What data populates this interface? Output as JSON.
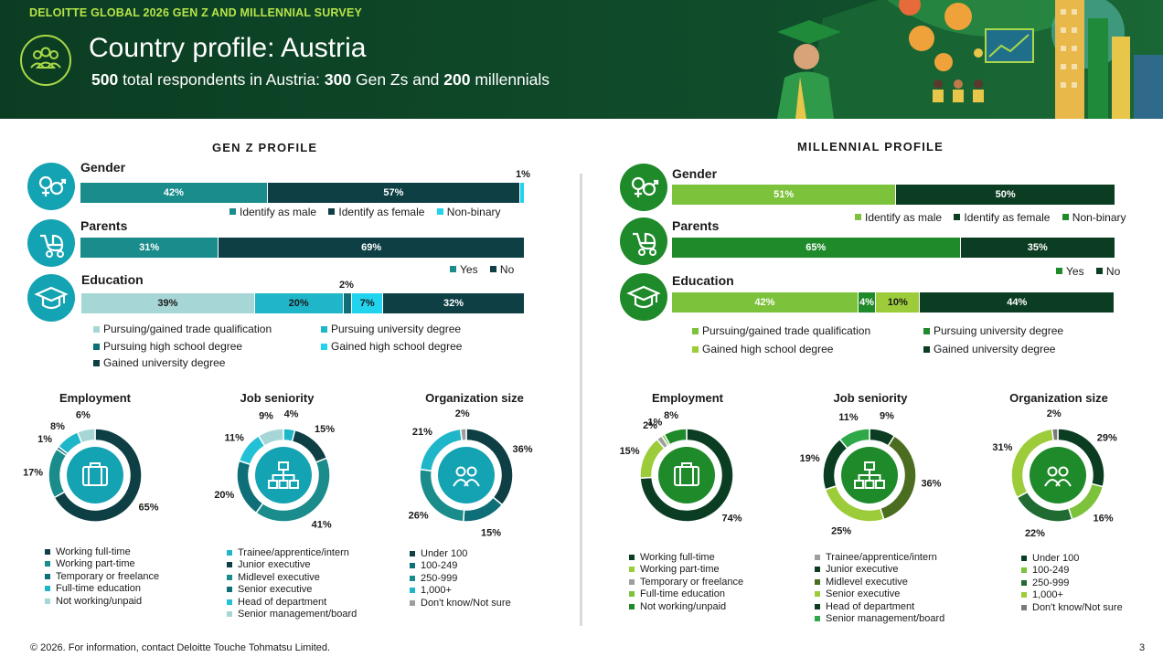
{
  "header": {
    "survey_label": "DELOITTE GLOBAL 2026 GEN Z AND MILLENNIAL SURVEY",
    "title": "Country profile: Austria",
    "subtitle_total": "500",
    "subtitle_text1": " total respondents in Austria: ",
    "subtitle_genz": "300",
    "subtitle_text2": " Gen Zs and ",
    "subtitle_mill": "200",
    "subtitle_text3": " millennials"
  },
  "colors": {
    "header_bg": "#0f4a2a",
    "accent_lime": "#b6e34a",
    "genz_icon": "#14a3b3",
    "mill_icon": "#1f8a2a",
    "genz_palette": [
      "#1a8c8c",
      "#0d3f45",
      "#22d3ee",
      "#a7d6d6",
      "#1fb6c9",
      "#0e6f78"
    ],
    "mill_palette": [
      "#7cc23a",
      "#0b3d22",
      "#1f8a2a",
      "#9ccc3a"
    ]
  },
  "footer": {
    "text": "© 2026. For information, contact Deloitte Touche Tohmatsu Limited.",
    "page": "3"
  },
  "chart_data": [
    {
      "id": "genz_profile",
      "type": "bar",
      "title": "GEN Z PROFILE",
      "rows": [
        {
          "label": "Gender",
          "icon": "gender-icon",
          "segments": [
            {
              "name": "Identify as male",
              "value": 42,
              "label": "42%",
              "color": "#1a8c8c"
            },
            {
              "name": "Identify as female",
              "value": 57,
              "label": "57%",
              "color": "#0d3f45"
            },
            {
              "name": "Non-binary",
              "value": 1,
              "label": "1%",
              "color": "#22d3ee"
            }
          ]
        },
        {
          "label": "Parents",
          "icon": "stroller-icon",
          "segments": [
            {
              "name": "Yes",
              "value": 31,
              "label": "31%",
              "color": "#1a8c8c"
            },
            {
              "name": "No",
              "value": 69,
              "label": "69%",
              "color": "#0d3f45"
            }
          ]
        },
        {
          "label": "Education",
          "icon": "graduation-cap-icon",
          "segments": [
            {
              "name": "Pursuing/gained trade qualification",
              "value": 39,
              "label": "39%",
              "color": "#a7d6d6"
            },
            {
              "name": "Pursuing university degree",
              "value": 20,
              "label": "20%",
              "color": "#1fb6c9"
            },
            {
              "name": "Pursuing high school degree",
              "value": 2,
              "label": "2%",
              "color": "#0e6f78"
            },
            {
              "name": "Gained high school degree",
              "value": 7,
              "label": "7%",
              "color": "#22d3ee"
            },
            {
              "name": "Gained university degree",
              "value": 32,
              "label": "32%",
              "color": "#0d3f45"
            }
          ]
        }
      ]
    },
    {
      "id": "millennial_profile",
      "type": "bar",
      "title": "MILLENNIAL PROFILE",
      "rows": [
        {
          "label": "Gender",
          "icon": "gender-icon",
          "segments": [
            {
              "name": "Identify as male",
              "value": 51,
              "label": "51%",
              "color": "#7cc23a"
            },
            {
              "name": "Identify as female",
              "value": 50,
              "label": "50%",
              "color": "#0b3d22"
            },
            {
              "name": "Non-binary",
              "value": 0,
              "label": "",
              "color": "#1f8a2a"
            }
          ]
        },
        {
          "label": "Parents",
          "icon": "stroller-icon",
          "segments": [
            {
              "name": "Yes",
              "value": 65,
              "label": "65%",
              "color": "#1f8a2a"
            },
            {
              "name": "No",
              "value": 35,
              "label": "35%",
              "color": "#0b3d22"
            }
          ]
        },
        {
          "label": "Education",
          "icon": "graduation-cap-icon",
          "segments": [
            {
              "name": "Pursuing/gained trade qualification",
              "value": 42,
              "label": "42%",
              "color": "#7cc23a"
            },
            {
              "name": "Pursuing university degree",
              "value": 4,
              "label": "4%",
              "color": "#1f8a2a"
            },
            {
              "name": "Gained high school degree",
              "value": 10,
              "label": "10%",
              "color": "#9ccc3a"
            },
            {
              "name": "Gained university degree",
              "value": 44,
              "label": "44%",
              "color": "#0b3d22"
            }
          ]
        }
      ]
    },
    {
      "id": "genz_employment",
      "type": "pie",
      "title": "Employment",
      "icon": "briefcase-icon",
      "slices": [
        {
          "name": "Working full-time",
          "value": 65,
          "label": "65%",
          "color": "#0d3f45"
        },
        {
          "name": "Working part-time",
          "value": 17,
          "label": "17%",
          "color": "#1a8c8c"
        },
        {
          "name": "Temporary or freelance",
          "value": 1,
          "label": "1%",
          "color": "#0e6f78"
        },
        {
          "name": "Full-time education",
          "value": 8,
          "label": "8%",
          "color": "#1fb6c9"
        },
        {
          "name": "Not working/unpaid",
          "value": 6,
          "label": "6%",
          "color": "#a7d6d6"
        }
      ]
    },
    {
      "id": "genz_seniority",
      "type": "pie",
      "title": "Job seniority",
      "icon": "org-chart-icon",
      "slices": [
        {
          "name": "Trainee/apprentice/intern",
          "value": 4,
          "label": "4%",
          "color": "#1fb6c9"
        },
        {
          "name": "Junior executive",
          "value": 15,
          "label": "15%",
          "color": "#0d3f45"
        },
        {
          "name": "Midlevel executive",
          "value": 41,
          "label": "41%",
          "color": "#1a8c8c"
        },
        {
          "name": "Senior executive",
          "value": 20,
          "label": "20%",
          "color": "#0e6f78"
        },
        {
          "name": "Head of department",
          "value": 11,
          "label": "11%",
          "color": "#22c1d6"
        },
        {
          "name": "Senior management/board",
          "value": 9,
          "label": "9%",
          "color": "#a7d6d6"
        }
      ]
    },
    {
      "id": "genz_orgsize",
      "type": "pie",
      "title": "Organization size",
      "icon": "people-icon",
      "slices": [
        {
          "name": "Under 100",
          "value": 36,
          "label": "36%",
          "color": "#0d3f45"
        },
        {
          "name": "100-249",
          "value": 15,
          "label": "15%",
          "color": "#0e6f78"
        },
        {
          "name": "250-999",
          "value": 26,
          "label": "26%",
          "color": "#1a8c8c"
        },
        {
          "name": "1,000+",
          "value": 21,
          "label": "21%",
          "color": "#1fb6c9"
        },
        {
          "name": "Don't know/Not sure",
          "value": 2,
          "label": "2%",
          "color": "#9e9e9e"
        }
      ]
    },
    {
      "id": "mill_employment",
      "type": "pie",
      "title": "Employment",
      "icon": "briefcase-icon",
      "slices": [
        {
          "name": "Working full-time",
          "value": 74,
          "label": "74%",
          "color": "#0b3d22"
        },
        {
          "name": "Working part-time",
          "value": 15,
          "label": "15%",
          "color": "#9ccc3a"
        },
        {
          "name": "Temporary or freelance",
          "value": 2,
          "label": "2%",
          "color": "#9e9e9e"
        },
        {
          "name": "Full-time education",
          "value": 1,
          "label": "1%",
          "color": "#7cc23a"
        },
        {
          "name": "Not working/unpaid",
          "value": 8,
          "label": "8%",
          "color": "#1f8a2a"
        }
      ]
    },
    {
      "id": "mill_seniority",
      "type": "pie",
      "title": "Job seniority",
      "icon": "org-chart-icon",
      "slices": [
        {
          "name": "Trainee/apprentice/intern",
          "value": 0,
          "label": "",
          "color": "#9e9e9e"
        },
        {
          "name": "Junior executive",
          "value": 9,
          "label": "9%",
          "color": "#0b3d22"
        },
        {
          "name": "Midlevel executive",
          "value": 36,
          "label": "36%",
          "color": "#4a6d1f"
        },
        {
          "name": "Senior executive",
          "value": 25,
          "label": "25%",
          "color": "#9ccc3a"
        },
        {
          "name": "Head of department",
          "value": 19,
          "label": "19%",
          "color": "#0b3d22"
        },
        {
          "name": "Senior management/board",
          "value": 11,
          "label": "11%",
          "color": "#2fa84a"
        }
      ]
    },
    {
      "id": "mill_orgsize",
      "type": "pie",
      "title": "Organization size",
      "icon": "people-icon",
      "slices": [
        {
          "name": "Under 100",
          "value": 29,
          "label": "29%",
          "color": "#0b3d22"
        },
        {
          "name": "100-249",
          "value": 16,
          "label": "16%",
          "color": "#7cc23a"
        },
        {
          "name": "250-999",
          "value": 22,
          "label": "22%",
          "color": "#1f6b32"
        },
        {
          "name": "1,000+",
          "value": 31,
          "label": "31%",
          "color": "#9ccc3a"
        },
        {
          "name": "Don't know/Not sure",
          "value": 2,
          "label": "2%",
          "color": "#7a7a7a"
        }
      ]
    }
  ],
  "legends": {
    "genz_gender": [
      "Identify as male",
      "Identify as female",
      "Non-binary"
    ],
    "genz_parents": [
      "Yes",
      "No"
    ],
    "genz_education": [
      "Pursuing/gained trade qualification",
      "Pursuing university degree",
      "Pursuing high school degree",
      "Gained high school degree",
      "Gained university degree"
    ],
    "mill_gender": [
      "Identify as male",
      "Identify as female",
      "Non-binary"
    ],
    "mill_parents": [
      "Yes",
      "No"
    ],
    "mill_education": [
      "Pursuing/gained trade qualification",
      "Pursuing university degree",
      "Gained high school degree",
      "Gained university degree"
    ]
  }
}
